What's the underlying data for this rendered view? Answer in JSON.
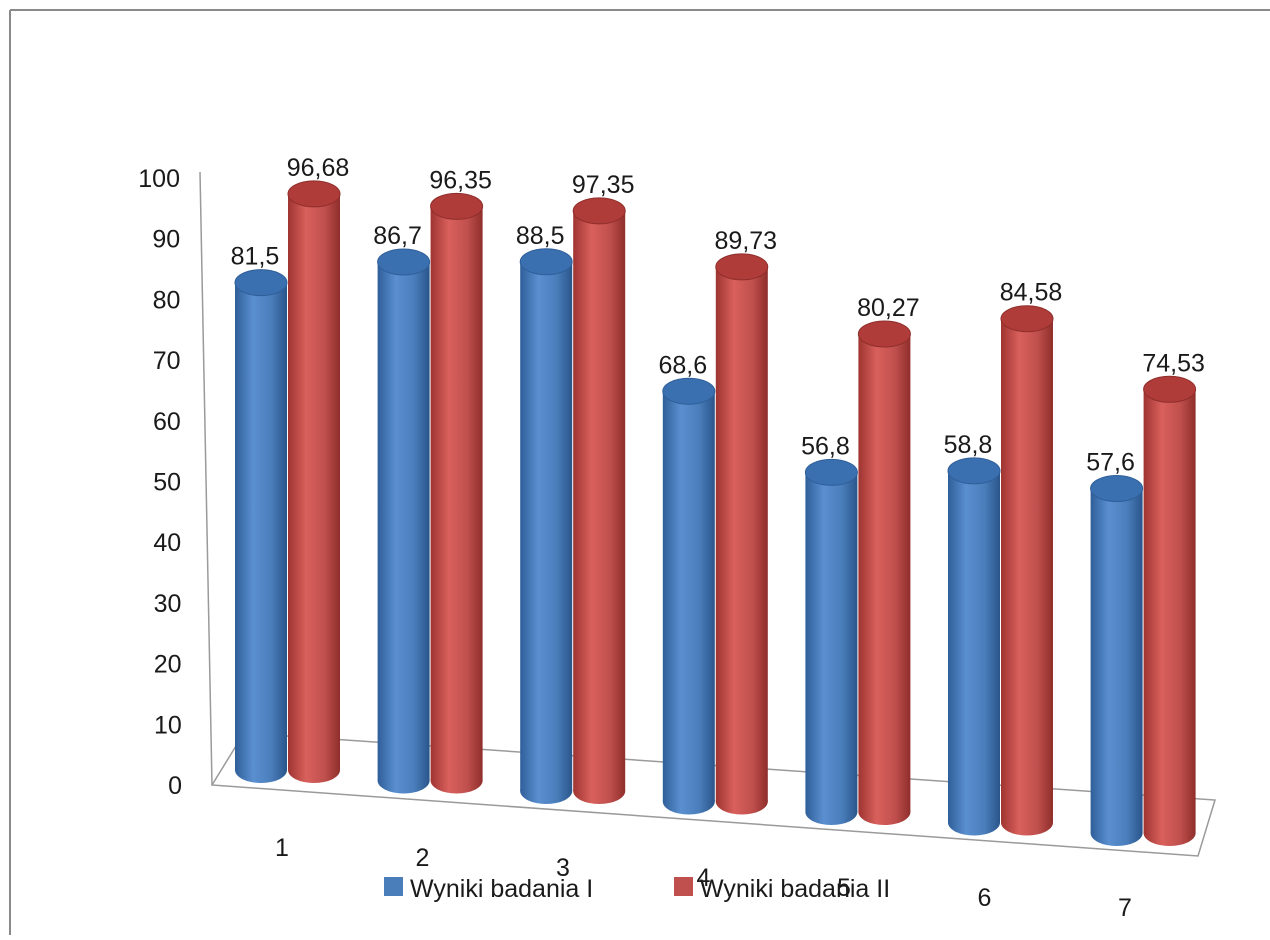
{
  "chart_data": {
    "type": "bar",
    "variant": "3d-cylinder",
    "title": "",
    "xlabel": "",
    "ylabel": "",
    "categories": [
      "1",
      "2",
      "3",
      "4",
      "5",
      "6",
      "7"
    ],
    "series": [
      {
        "name": "Wyniki badania I",
        "color": "#4a7ebb",
        "values": [
          81.5,
          86.7,
          88.5,
          68.6,
          56.8,
          58.8,
          57.6
        ],
        "labels": [
          "81,5",
          "86,7",
          "88,5",
          "68,6",
          "56,8",
          "58,8",
          "57,6"
        ]
      },
      {
        "name": "Wyniki badania II",
        "color": "#c0504d",
        "values": [
          96.68,
          96.35,
          97.35,
          89.73,
          80.27,
          84.58,
          74.53
        ],
        "labels": [
          "96,68",
          "96,35",
          "97,35",
          "89,73",
          "80,27",
          "84,58",
          "74,53"
        ]
      }
    ],
    "yticks": [
      "0",
      "10",
      "20",
      "30",
      "40",
      "50",
      "60",
      "70",
      "80",
      "90",
      "100"
    ],
    "ylim": [
      0,
      100
    ],
    "grid": false,
    "legend_position": "bottom"
  }
}
